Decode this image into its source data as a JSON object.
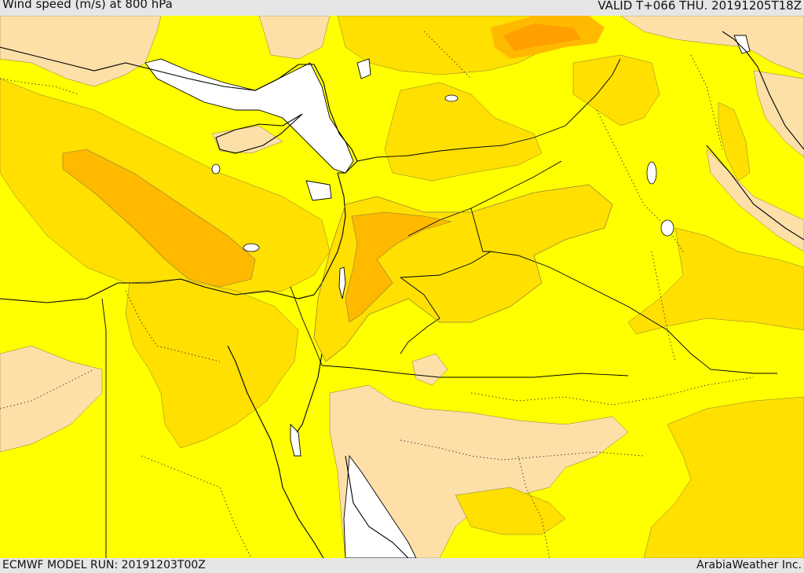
{
  "header": {
    "title": "Wind speed (m/s) at 800 hPa",
    "valid_time": "VALID T+066 THU. 20191205T18Z"
  },
  "footer": {
    "model_run": "ECMWF MODEL RUN: 20191203T00Z",
    "credit": "ArabiaWeather Inc."
  },
  "colors": {
    "sea": "#ffffff",
    "low": "#fde0a8",
    "base": "#ffff00",
    "mid": "#ffe000",
    "high": "#ffba00",
    "max": "#ffa000",
    "coast": "#000000",
    "border": "#000000",
    "frame": "#e6e6e6"
  }
}
